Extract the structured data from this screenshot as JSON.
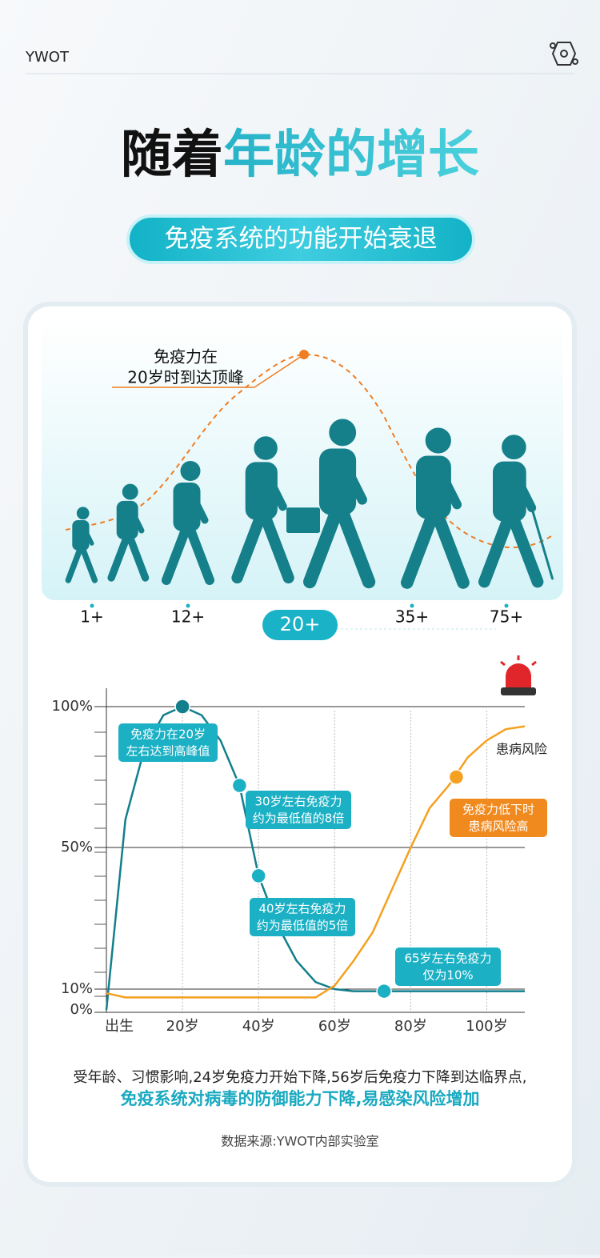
{
  "header": {
    "brand": "YWOT"
  },
  "title_parts": [
    "随着",
    "年龄的增长"
  ],
  "subtitle": "免疫系统的功能开始衰退",
  "illustration": {
    "note_lines": [
      "免疫力在",
      "20岁时到达顶峰"
    ],
    "ages": [
      "1+",
      "12+",
      "20+",
      "35+",
      "75+"
    ]
  },
  "chart_data": {
    "type": "line",
    "x": [
      0,
      5,
      10,
      15,
      20,
      25,
      30,
      35,
      40,
      45,
      50,
      55,
      60,
      65,
      70,
      75,
      80,
      85,
      90,
      95,
      100,
      105,
      110
    ],
    "series": [
      {
        "name": "免疫力",
        "color": "#127f8c",
        "values": [
          0,
          60,
          85,
          97,
          100,
          97,
          88,
          72,
          42,
          28,
          18,
          12,
          10,
          9,
          9,
          9,
          9,
          9,
          9,
          9,
          9,
          9,
          9
        ]
      },
      {
        "name": "患病风险",
        "color": "#f5a020",
        "values": [
          8,
          6,
          6,
          6,
          6,
          6,
          6,
          6,
          6,
          6,
          6,
          6,
          11,
          18,
          26,
          38,
          50,
          64,
          72,
          82,
          88,
          92,
          93
        ]
      }
    ],
    "xlim": [
      0,
      110
    ],
    "xticks": [
      {
        "value": 0,
        "label": "出生"
      },
      {
        "value": 20,
        "label": "20岁"
      },
      {
        "value": 40,
        "label": "40岁"
      },
      {
        "value": 60,
        "label": "60岁"
      },
      {
        "value": 80,
        "label": "80岁"
      },
      {
        "value": 100,
        "label": "100岁"
      }
    ],
    "ylim": [
      0,
      100
    ],
    "yticks": [
      {
        "value": 0,
        "label": "0%"
      },
      {
        "value": 10,
        "label": "10%"
      },
      {
        "value": 50,
        "label": "50%"
      },
      {
        "value": 100,
        "label": "100%"
      }
    ],
    "grid": true,
    "annotations": [
      {
        "lines": [
          "免疫力在20岁",
          "左右达到高峰值"
        ],
        "x": 20,
        "y": 100,
        "series": 0
      },
      {
        "lines": [
          "30岁左右免疫力",
          "约为最低值的8倍"
        ],
        "x": 35,
        "y": 72,
        "series": 0
      },
      {
        "lines": [
          "40岁左右免疫力",
          "约为最低值的5倍"
        ],
        "x": 40,
        "y": 42,
        "series": 0
      },
      {
        "lines": [
          "65岁左右免疫力",
          "仅为10%"
        ],
        "x": 73,
        "y": 9,
        "series": 0
      },
      {
        "lines": [
          "免疫力低下时",
          "患病风险高"
        ],
        "x": 92,
        "y": 75,
        "series": 1
      }
    ]
  },
  "footer": {
    "line1": "受年龄、习惯影响,24岁免疫力开始下降,56岁后免疫力下降到达临界点,",
    "line2": "免疫系统对病毒的防御能力下降,易感染风险增加",
    "source": "数据来源:YWOT内部实验室"
  }
}
